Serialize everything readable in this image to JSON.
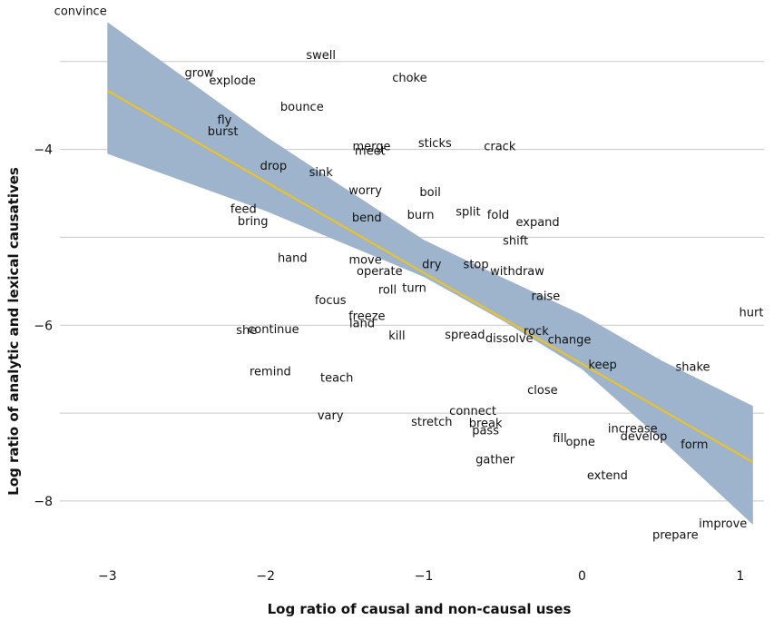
{
  "chart_data": {
    "type": "scatter",
    "title": "",
    "xlabel": "Log ratio of causal and non-causal uses",
    "ylabel": "Log ratio of analytic and lexical causatives",
    "xlim": [
      -3.3,
      1.15
    ],
    "ylim": [
      -8.6,
      -2.3
    ],
    "x_ticks": [
      -3,
      -2,
      -1,
      0,
      1
    ],
    "y_ticks": [
      -4,
      -6,
      -8
    ],
    "x_tick_labels": [
      "−3",
      "−2",
      "−1",
      "0",
      "1"
    ],
    "y_tick_labels": [
      "−4",
      "−6",
      "−8"
    ],
    "grid_y": [
      -3,
      -4,
      -5,
      -6,
      -7,
      -8
    ],
    "colors": {
      "band": "#9db4cc",
      "line": "#f0c419",
      "grid": "#c8c8c8",
      "text": "#111111"
    },
    "fit": {
      "x": [
        -3.0,
        1.08
      ],
      "y": [
        -3.33,
        -7.56
      ]
    },
    "band": {
      "x": [
        -3.0,
        -2.0,
        -1.0,
        -0.5,
        0.0,
        0.5,
        1.08
      ],
      "upper": [
        -2.55,
        -3.85,
        -5.03,
        -5.46,
        -5.88,
        -6.4,
        -6.92
      ],
      "lower": [
        -4.05,
        -4.7,
        -5.45,
        -5.95,
        -6.5,
        -7.3,
        -8.27
      ]
    },
    "points": [
      {
        "label": "convince",
        "x": -3.17,
        "y": -2.43
      },
      {
        "label": "swell",
        "x": -1.65,
        "y": -2.93
      },
      {
        "label": "grow",
        "x": -2.42,
        "y": -3.13
      },
      {
        "label": "explode",
        "x": -2.21,
        "y": -3.22
      },
      {
        "label": "choke",
        "x": -1.09,
        "y": -3.19
      },
      {
        "label": "bounce",
        "x": -1.77,
        "y": -3.52
      },
      {
        "label": "fly",
        "x": -2.26,
        "y": -3.67
      },
      {
        "label": "burst",
        "x": -2.27,
        "y": -3.8
      },
      {
        "label": "sticks",
        "x": -0.93,
        "y": -3.93
      },
      {
        "label": "crack",
        "x": -0.52,
        "y": -3.97
      },
      {
        "label": "merge",
        "x": -1.33,
        "y": -3.97
      },
      {
        "label": "meet",
        "x": -1.34,
        "y": -4.02
      },
      {
        "label": "drop",
        "x": -1.95,
        "y": -4.19
      },
      {
        "label": "sink",
        "x": -1.65,
        "y": -4.26
      },
      {
        "label": "worry",
        "x": -1.37,
        "y": -4.47
      },
      {
        "label": "boil",
        "x": -0.96,
        "y": -4.49
      },
      {
        "label": "feed",
        "x": -2.14,
        "y": -4.68
      },
      {
        "label": "bring",
        "x": -2.08,
        "y": -4.82
      },
      {
        "label": "bend",
        "x": -1.36,
        "y": -4.78
      },
      {
        "label": "burn",
        "x": -1.02,
        "y": -4.75
      },
      {
        "label": "split",
        "x": -0.72,
        "y": -4.71
      },
      {
        "label": "fold",
        "x": -0.53,
        "y": -4.75
      },
      {
        "label": "expand",
        "x": -0.28,
        "y": -4.83
      },
      {
        "label": "shift",
        "x": -0.42,
        "y": -5.04
      },
      {
        "label": "hand",
        "x": -1.83,
        "y": -5.24
      },
      {
        "label": "move",
        "x": -1.37,
        "y": -5.26
      },
      {
        "label": "dry",
        "x": -0.95,
        "y": -5.31
      },
      {
        "label": "stop",
        "x": -0.67,
        "y": -5.31
      },
      {
        "label": "withdraw",
        "x": -0.41,
        "y": -5.39
      },
      {
        "label": "operate",
        "x": -1.28,
        "y": -5.39
      },
      {
        "label": "roll",
        "x": -1.23,
        "y": -5.6
      },
      {
        "label": "turn",
        "x": -1.06,
        "y": -5.58
      },
      {
        "label": "focus",
        "x": -1.59,
        "y": -5.72
      },
      {
        "label": "raise",
        "x": -0.23,
        "y": -5.67
      },
      {
        "label": "freeze",
        "x": -1.36,
        "y": -5.9
      },
      {
        "label": "land",
        "x": -1.39,
        "y": -5.98
      },
      {
        "label": "hurt",
        "x": 1.07,
        "y": -5.86
      },
      {
        "label": "she",
        "x": -2.12,
        "y": -6.06
      },
      {
        "label": "continue",
        "x": -1.95,
        "y": -6.05
      },
      {
        "label": "kill",
        "x": -1.17,
        "y": -6.12
      },
      {
        "label": "spread",
        "x": -0.74,
        "y": -6.11
      },
      {
        "label": "rock",
        "x": -0.29,
        "y": -6.07
      },
      {
        "label": "dissolve",
        "x": -0.46,
        "y": -6.15
      },
      {
        "label": "change",
        "x": -0.08,
        "y": -6.17
      },
      {
        "label": "keep",
        "x": 0.13,
        "y": -6.45
      },
      {
        "label": "shake",
        "x": 0.7,
        "y": -6.48
      },
      {
        "label": "remind",
        "x": -1.97,
        "y": -6.53
      },
      {
        "label": "teach",
        "x": -1.55,
        "y": -6.6
      },
      {
        "label": "close",
        "x": -0.25,
        "y": -6.74
      },
      {
        "label": "vary",
        "x": -1.59,
        "y": -7.03
      },
      {
        "label": "connect",
        "x": -0.69,
        "y": -6.98
      },
      {
        "label": "stretch",
        "x": -0.95,
        "y": -7.1
      },
      {
        "label": "break",
        "x": -0.61,
        "y": -7.12
      },
      {
        "label": "pass",
        "x": -0.61,
        "y": -7.2
      },
      {
        "label": "increase",
        "x": 0.32,
        "y": -7.18
      },
      {
        "label": "develop",
        "x": 0.39,
        "y": -7.27
      },
      {
        "label": "fill",
        "x": -0.14,
        "y": -7.29
      },
      {
        "label": "opne",
        "x": -0.01,
        "y": -7.33
      },
      {
        "label": "form",
        "x": 0.71,
        "y": -7.36
      },
      {
        "label": "gather",
        "x": -0.55,
        "y": -7.53
      },
      {
        "label": "extend",
        "x": 0.16,
        "y": -7.71
      },
      {
        "label": "improve",
        "x": 0.89,
        "y": -8.26
      },
      {
        "label": "prepare",
        "x": 0.59,
        "y": -8.39
      }
    ]
  }
}
